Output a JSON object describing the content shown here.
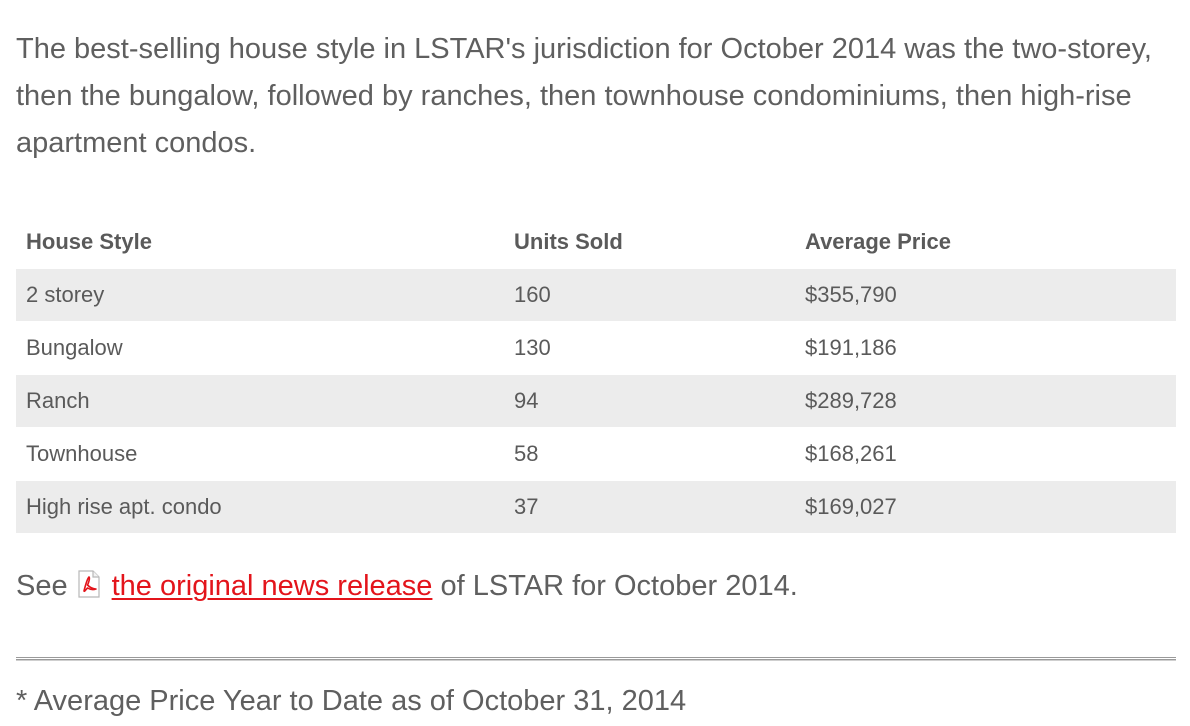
{
  "intro_text": "The best-selling house style in LSTAR's jurisdiction for October 2014 was the two-storey, then the bungalow, followed by ranches, then townhouse condominiums, then high-rise apartment condos.",
  "table": {
    "headers": {
      "style": "House Style",
      "units": "Units Sold",
      "price": "Average Price"
    },
    "rows": [
      {
        "style": "2 storey",
        "units": "160",
        "price": "$355,790"
      },
      {
        "style": "Bungalow",
        "units": "130",
        "price": "$191,186"
      },
      {
        "style": "Ranch",
        "units": "94",
        "price": "$289,728"
      },
      {
        "style": "Townhouse",
        "units": "58",
        "price": "$168,261"
      },
      {
        "style": "High rise apt. condo",
        "units": "37",
        "price": "$169,027"
      }
    ]
  },
  "release": {
    "prefix": "See",
    "icon": "pdf-icon",
    "link_text": "the original news release",
    "suffix": "of LSTAR for October 2014."
  },
  "footnote": "* Average Price Year to Date as of October 31, 2014",
  "colors": {
    "text": "#5f5f5f",
    "link": "#e3141b",
    "row_stripe": "#ececec"
  }
}
